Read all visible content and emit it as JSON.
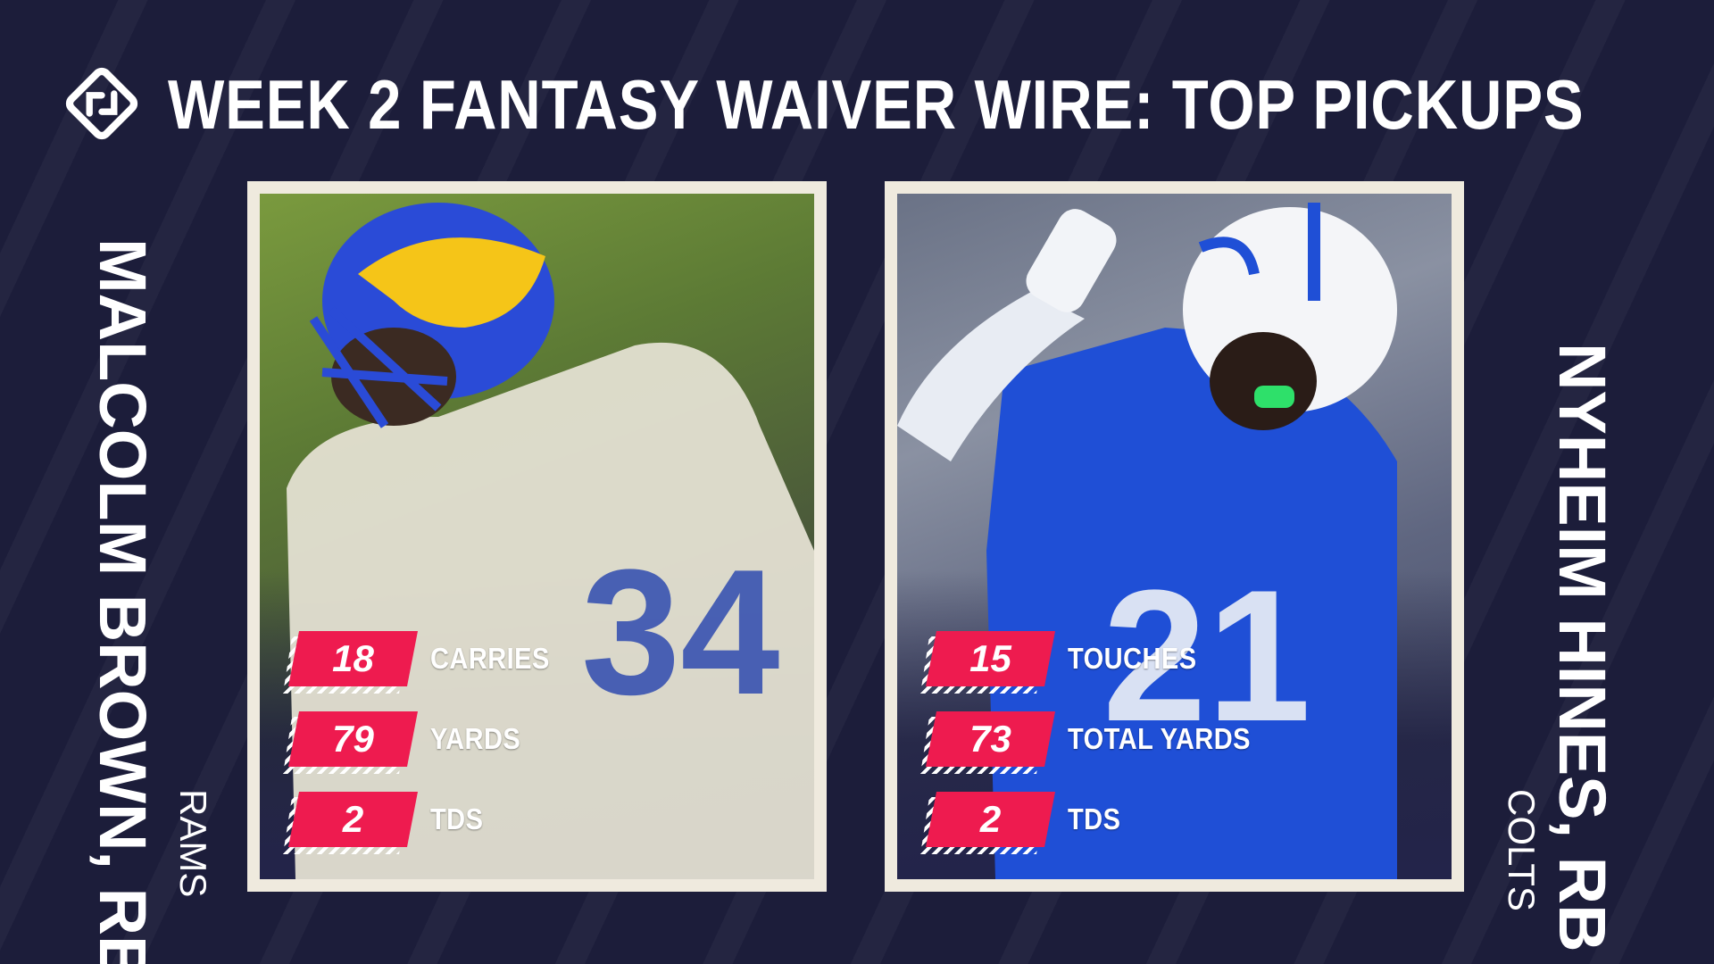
{
  "header": {
    "title": "WEEK 2 FANTASY WAIVER WIRE: TOP PICKUPS",
    "logo_icon": "sporting-news-logo-icon"
  },
  "colors": {
    "background": "#1c1d3a",
    "accent": "#ee1b4f",
    "card_frame": "#efeade"
  },
  "players": [
    {
      "name": "MALCOLM BROWN, RB",
      "team": "RAMS",
      "photo_icon": "rams-player-photo",
      "stats": [
        {
          "value": "18",
          "label": "CARRIES"
        },
        {
          "value": "79",
          "label": "YARDS"
        },
        {
          "value": "2",
          "label": "TDS"
        }
      ]
    },
    {
      "name": "NYHEIM HINES, RB",
      "team": "COLTS",
      "photo_icon": "colts-player-photo",
      "stats": [
        {
          "value": "15",
          "label": "TOUCHES"
        },
        {
          "value": "73",
          "label": "TOTAL YARDS"
        },
        {
          "value": "2",
          "label": "TDS"
        }
      ]
    }
  ]
}
